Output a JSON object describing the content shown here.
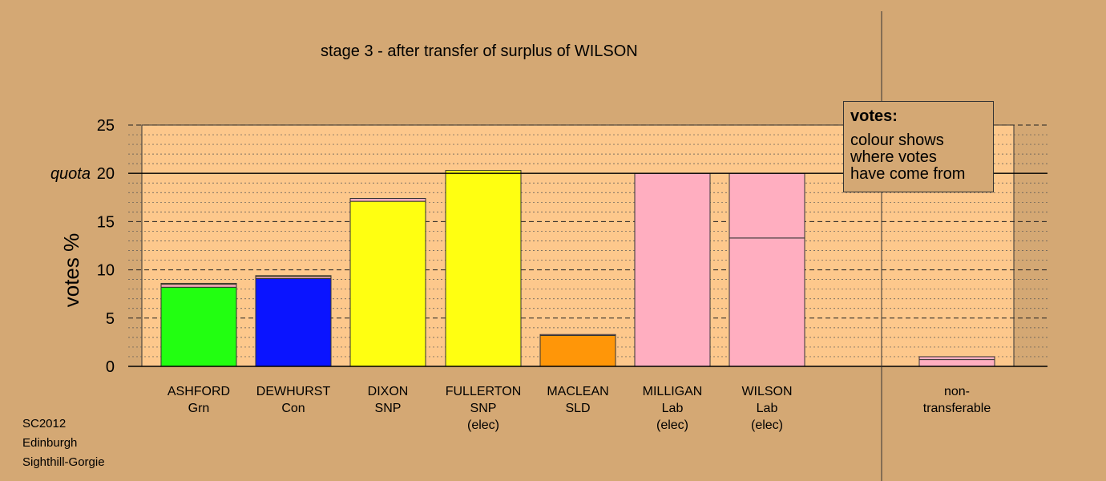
{
  "title": "stage 3 - after transfer of surplus of WILSON",
  "footer": [
    "SC2012",
    "Edinburgh",
    "Sighthill-Gorgie"
  ],
  "legend": {
    "title": "votes:",
    "lines": [
      "colour shows",
      "where votes",
      "have come from"
    ]
  },
  "chart_data": {
    "type": "bar",
    "stacked": true,
    "ylabel": "votes %",
    "ylim": [
      0,
      25
    ],
    "yticks": [
      0,
      5,
      10,
      15,
      20,
      25
    ],
    "quota": 20,
    "quota_label": "quota",
    "grid": "dashed",
    "categories": [
      {
        "lines": [
          "ASHFORD",
          "Grn"
        ]
      },
      {
        "lines": [
          "DEWHURST",
          "Con"
        ]
      },
      {
        "lines": [
          "DIXON",
          "SNP"
        ]
      },
      {
        "lines": [
          "FULLERTON",
          "SNP",
          "(elec)"
        ]
      },
      {
        "lines": [
          "MACLEAN",
          "SLD"
        ]
      },
      {
        "lines": [
          "MILLIGAN",
          "Lab",
          "(elec)"
        ]
      },
      {
        "lines": [
          "WILSON",
          "Lab",
          "(elec)"
        ]
      },
      {
        "lines": [
          "non-",
          "transferable"
        ]
      }
    ],
    "bars": [
      {
        "segments": [
          {
            "value": 8.2,
            "color": "#22ff11"
          },
          {
            "value": 0.3,
            "color": "#ffaec0"
          },
          {
            "value": 0.1,
            "color": "#ffff11"
          }
        ]
      },
      {
        "segments": [
          {
            "value": 9.1,
            "color": "#0a14ff"
          },
          {
            "value": 0.2,
            "color": "#ffaec0"
          },
          {
            "value": 0.1,
            "color": "#ffff11"
          }
        ]
      },
      {
        "segments": [
          {
            "value": 17.1,
            "color": "#ffff11"
          },
          {
            "value": 0.3,
            "color": "#ffaec0"
          }
        ]
      },
      {
        "segments": [
          {
            "value": 20.3,
            "color": "#ffff11"
          }
        ]
      },
      {
        "segments": [
          {
            "value": 3.2,
            "color": "#ff9608"
          },
          {
            "value": 0.1,
            "color": "#ffaec0"
          }
        ]
      },
      {
        "segments": [
          {
            "value": 20.0,
            "color": "#ffaec0"
          }
        ]
      },
      {
        "segments": [
          {
            "value": 13.3,
            "color": "#ffaec0"
          },
          {
            "value": 6.7,
            "color": "#ffaec0"
          }
        ]
      },
      {
        "segments": [
          {
            "value": 0.7,
            "color": "#ffaec0"
          },
          {
            "value": 0.3,
            "color": "#ffaec0"
          }
        ]
      }
    ],
    "colors": {
      "background": "#d4a874",
      "plot_background": "#fdc88c",
      "axis": "#000000"
    }
  }
}
